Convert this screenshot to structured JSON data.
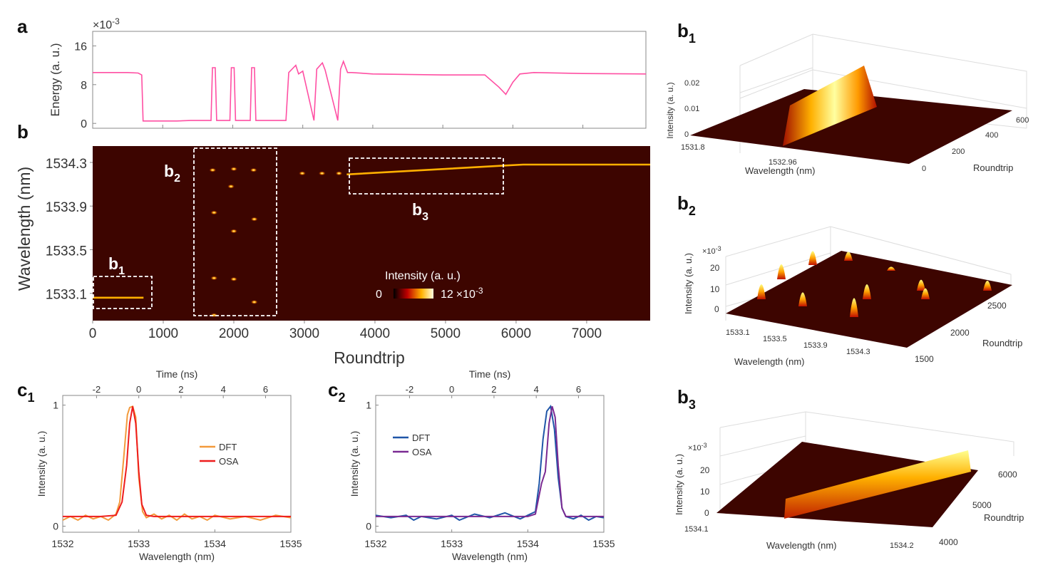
{
  "panels": {
    "a": "a",
    "b": "b",
    "b_sub": "b",
    "b1_sub": "1",
    "b2_sub": "2",
    "b3_sub": "3",
    "c_main": "c",
    "c1_sub": "1",
    "c2_sub": "2"
  },
  "colors": {
    "energy": "#ff4fa3",
    "heatmap_bg": "#3d0500",
    "trace": "#ffb000",
    "dft_c1": "#f39a3c",
    "osa_c1": "#ee1c1c",
    "dft_c2": "#1f56a8",
    "osa_c2": "#7a2a92",
    "box": "#ffffff"
  },
  "chart_data": [
    {
      "id": "a",
      "type": "line",
      "ylabel": "Energy (a. u.)",
      "xlabel": "",
      "yexp": "×10",
      "yexp_sup": "-3",
      "ylim": [
        -1,
        19
      ],
      "xlim": [
        0,
        7900
      ],
      "yticks": [
        0,
        8,
        16
      ],
      "xticks": [
        0,
        1000,
        2000,
        3000,
        4000,
        5000,
        6000,
        7000
      ],
      "x": [
        0,
        500,
        650,
        700,
        720,
        800,
        1000,
        1200,
        1400,
        1600,
        1690,
        1710,
        1750,
        1770,
        1900,
        1960,
        1980,
        2020,
        2040,
        2200,
        2250,
        2270,
        2310,
        2330,
        2700,
        2760,
        2800,
        2900,
        2940,
        3000,
        3160,
        3200,
        3280,
        3320,
        3500,
        3540,
        3580,
        3640,
        3700,
        4000,
        5000,
        5600,
        5800,
        5900,
        6000,
        6100,
        6300,
        7000,
        7900
      ],
      "y": [
        10.5,
        10.5,
        10.4,
        10.0,
        0.5,
        0.5,
        0.5,
        0.5,
        0.6,
        0.6,
        0.6,
        11.5,
        11.5,
        0.6,
        0.6,
        0.6,
        11.5,
        11.5,
        0.6,
        0.6,
        0.6,
        11.5,
        11.5,
        0.6,
        0.6,
        0.6,
        10.5,
        12.0,
        10.2,
        10.8,
        0.6,
        11.2,
        12.5,
        11.0,
        0.6,
        11.2,
        12.8,
        10.5,
        10.5,
        10.2,
        10.0,
        10.0,
        7.5,
        6.0,
        8.5,
        10.2,
        10.5,
        10.3,
        10.2
      ]
    },
    {
      "id": "b",
      "type": "heatmap",
      "ylabel": "Wavelength (nm)",
      "xlabel": "Roundtrip",
      "yticks": [
        1533.1,
        1533.5,
        1533.9,
        1534.3
      ],
      "xticks": [
        0,
        1000,
        2000,
        3000,
        4000,
        5000,
        6000,
        7000
      ],
      "xlim": [
        0,
        7900
      ],
      "ylim": [
        1532.85,
        1534.45
      ],
      "colorbar_label": "Intensity (a. u.)",
      "colorbar_min": "0",
      "colorbar_max": "12",
      "colorbar_exp": "×10",
      "colorbar_exp_sup": "-3",
      "box_labels": [
        "b",
        "b",
        "b"
      ],
      "trace_segments": [
        {
          "x": [
            0,
            720
          ],
          "y": [
            1533.06,
            1533.06
          ]
        },
        {
          "x": [
            3600,
            5800,
            6100,
            7900
          ],
          "y": [
            1534.19,
            1534.27,
            1534.28,
            1534.28
          ]
        }
      ],
      "spots": [
        {
          "x": 1700,
          "y": 1534.23
        },
        {
          "x": 1720,
          "y": 1533.84
        },
        {
          "x": 1720,
          "y": 1533.24
        },
        {
          "x": 1720,
          "y": 1532.9
        },
        {
          "x": 1960,
          "y": 1534.08
        },
        {
          "x": 2000,
          "y": 1534.24
        },
        {
          "x": 2000,
          "y": 1533.67
        },
        {
          "x": 2000,
          "y": 1533.23
        },
        {
          "x": 2280,
          "y": 1534.23
        },
        {
          "x": 2290,
          "y": 1533.78
        },
        {
          "x": 2290,
          "y": 1533.02
        },
        {
          "x": 2970,
          "y": 1534.2
        },
        {
          "x": 3250,
          "y": 1534.2
        },
        {
          "x": 3490,
          "y": 1534.2
        }
      ]
    },
    {
      "id": "b1",
      "type": "surface",
      "zlabel": "Intensity (a. u.)",
      "xlabel": "Wavelength (nm)",
      "ylabel": "Roundtrip",
      "zticks": [
        "0.02",
        "0.01",
        "0"
      ],
      "xticks": [
        "1531.8",
        "1532.96"
      ],
      "yticks": [
        "0",
        "200",
        "400",
        "600"
      ]
    },
    {
      "id": "b2",
      "type": "surface",
      "zlabel": "Intensity (a. u.)",
      "xlabel": "Wavelength (nm)",
      "ylabel": "Roundtrip",
      "zexp": "×10",
      "zexp_sup": "-3",
      "zticks": [
        "20",
        "10",
        "0"
      ],
      "xticks": [
        "1533.1",
        "1533.5",
        "1533.9",
        "1534.3"
      ],
      "yticks": [
        "1500",
        "2000",
        "2500"
      ]
    },
    {
      "id": "b3",
      "type": "surface",
      "zlabel": "Intensity (a. u.)",
      "xlabel": "Wavelength (nm)",
      "ylabel": "Roundtrip",
      "zexp": "×10",
      "zexp_sup": "-3",
      "zticks": [
        "20",
        "10",
        "0"
      ],
      "xticks": [
        "1534.1",
        "1534.2"
      ],
      "yticks": [
        "4000",
        "5000",
        "6000"
      ]
    },
    {
      "id": "c1",
      "type": "line",
      "xlabel": "Wavelength (nm)",
      "ylabel": "Intensity (a. u.)",
      "toplabel": "Time (ns)",
      "xlim": [
        1532,
        1535
      ],
      "ylim": [
        -0.05,
        1.08
      ],
      "xticks": [
        1532,
        1533,
        1534,
        1535
      ],
      "yticks": [
        0,
        1
      ],
      "topticks": [
        -2,
        0,
        2,
        4,
        6
      ],
      "top_zero_at": 1533.0,
      "top_ns_per_nm": 3.6,
      "series": [
        {
          "name": "DFT",
          "x": [
            1532.0,
            1532.1,
            1532.2,
            1532.3,
            1532.4,
            1532.5,
            1532.6,
            1532.7,
            1532.75,
            1532.8,
            1532.85,
            1532.88,
            1532.92,
            1532.96,
            1533.0,
            1533.05,
            1533.1,
            1533.2,
            1533.3,
            1533.4,
            1533.5,
            1533.6,
            1533.7,
            1533.8,
            1533.9,
            1534.0,
            1534.2,
            1534.4,
            1534.6,
            1534.8,
            1535.0
          ],
          "y": [
            0.05,
            0.08,
            0.05,
            0.09,
            0.06,
            0.08,
            0.05,
            0.1,
            0.2,
            0.55,
            0.92,
            0.98,
            0.99,
            0.9,
            0.4,
            0.12,
            0.07,
            0.1,
            0.06,
            0.09,
            0.05,
            0.1,
            0.06,
            0.08,
            0.05,
            0.09,
            0.06,
            0.08,
            0.05,
            0.09,
            0.07
          ]
        },
        {
          "name": "OSA",
          "x": [
            1532.0,
            1532.5,
            1532.7,
            1532.78,
            1532.84,
            1532.88,
            1532.92,
            1532.96,
            1533.0,
            1533.04,
            1533.1,
            1533.2,
            1533.5,
            1535.0
          ],
          "y": [
            0.08,
            0.08,
            0.09,
            0.2,
            0.5,
            0.85,
            0.99,
            0.85,
            0.45,
            0.18,
            0.09,
            0.08,
            0.08,
            0.08
          ]
        }
      ]
    },
    {
      "id": "c2",
      "type": "line",
      "xlabel": "Wavelength (nm)",
      "ylabel": "Intensity (a. u.)",
      "toplabel": "Time (ns)",
      "xlim": [
        1532,
        1535
      ],
      "ylim": [
        -0.05,
        1.08
      ],
      "xticks": [
        1532,
        1533,
        1534,
        1535
      ],
      "yticks": [
        0,
        1
      ],
      "topticks": [
        -2,
        0,
        2,
        4,
        6
      ],
      "top_zero_at": 1533.0,
      "top_ns_per_nm": 3.6,
      "series": [
        {
          "name": "DFT",
          "x": [
            1532.0,
            1532.2,
            1532.4,
            1532.5,
            1532.6,
            1532.8,
            1533.0,
            1533.1,
            1533.3,
            1533.5,
            1533.7,
            1533.9,
            1534.0,
            1534.1,
            1534.15,
            1534.2,
            1534.25,
            1534.3,
            1534.35,
            1534.4,
            1534.45,
            1534.5,
            1534.6,
            1534.7,
            1534.8,
            1534.9,
            1535.0
          ],
          "y": [
            0.09,
            0.07,
            0.09,
            0.05,
            0.08,
            0.06,
            0.09,
            0.05,
            0.1,
            0.07,
            0.11,
            0.06,
            0.09,
            0.12,
            0.35,
            0.72,
            0.95,
            0.99,
            0.8,
            0.4,
            0.15,
            0.08,
            0.06,
            0.09,
            0.05,
            0.08,
            0.07
          ]
        },
        {
          "name": "OSA",
          "x": [
            1532.0,
            1534.0,
            1534.1,
            1534.18,
            1534.23,
            1534.28,
            1534.32,
            1534.36,
            1534.4,
            1534.45,
            1534.5,
            1535.0
          ],
          "y": [
            0.08,
            0.08,
            0.1,
            0.35,
            0.45,
            0.85,
            0.99,
            0.9,
            0.5,
            0.15,
            0.08,
            0.08
          ]
        }
      ]
    }
  ]
}
